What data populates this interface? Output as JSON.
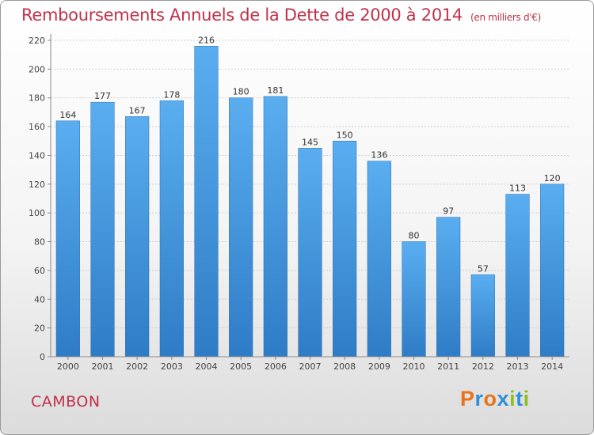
{
  "title": "Remboursements Annuels de la Dette de 2000 à 2014",
  "unit": "(en milliers d'€)",
  "commune": "CAMBON",
  "logo": {
    "letters": [
      "P",
      "r",
      "o",
      "x",
      "i",
      "t",
      "i"
    ],
    "colors": [
      "#e8731a",
      "#2f8fd8",
      "#e8731a",
      "#2f8fd8",
      "#8fbf22",
      "#2f8fd8",
      "#8fbf22"
    ]
  },
  "colors": {
    "title": "#c0314a",
    "bar_light": "#5aaef0",
    "bar_dark": "#2f7cc6"
  },
  "chart_data": {
    "type": "bar",
    "title": "Remboursements Annuels de la Dette de 2000 à 2014",
    "categories": [
      "2000",
      "2001",
      "2002",
      "2003",
      "2004",
      "2005",
      "2006",
      "2007",
      "2008",
      "2009",
      "2010",
      "2011",
      "2012",
      "2013",
      "2014"
    ],
    "values": [
      164,
      177,
      167,
      178,
      216,
      180,
      181,
      145,
      150,
      136,
      80,
      97,
      57,
      113,
      120
    ],
    "yticks": [
      0,
      20,
      40,
      60,
      80,
      100,
      120,
      140,
      160,
      180,
      200,
      220
    ],
    "ylim": [
      0,
      220
    ],
    "xlabel": "",
    "ylabel": "",
    "grid": true
  }
}
